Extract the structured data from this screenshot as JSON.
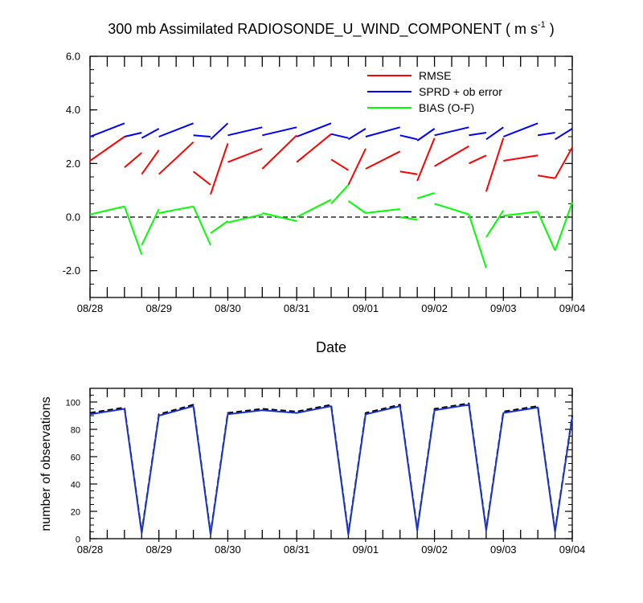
{
  "chart_data": [
    {
      "type": "line",
      "title": "300 mb Assimilated RADIOSONDE_U_WIND_COMPONENT ( m s",
      "title_units_superscript": "-1",
      "title_suffix": " )",
      "xlabel": "Date",
      "ylabel": "",
      "xlim": [
        0,
        7
      ],
      "ylim": [
        -3,
        6
      ],
      "yticks": [
        -2,
        0,
        2,
        4,
        6
      ],
      "ytick_labels": [
        "-2.0",
        "0.0",
        "2.0",
        "4.0",
        "6.0"
      ],
      "xtick_positions": [
        0,
        1,
        2,
        3,
        4,
        5,
        6,
        7
      ],
      "xtick_labels": [
        "08/28",
        "08/29",
        "08/30",
        "08/31",
        "09/01",
        "09/02",
        "09/03",
        "09/04"
      ],
      "reference_line": 0,
      "legend_position": "top-right",
      "series": [
        {
          "name": "RMSE",
          "color": "#ff0000",
          "segments": [
            [
              [
                0.0,
                2.1
              ],
              [
                0.5,
                3.0
              ]
            ],
            [
              [
                0.5,
                1.85
              ],
              [
                0.75,
                2.4
              ]
            ],
            [
              [
                0.75,
                1.6
              ],
              [
                1.0,
                2.5
              ]
            ],
            [
              [
                1.0,
                1.6
              ],
              [
                1.5,
                2.8
              ]
            ],
            [
              [
                1.5,
                1.7
              ],
              [
                1.75,
                1.2
              ]
            ],
            [
              [
                1.75,
                0.85
              ],
              [
                2.0,
                2.75
              ]
            ],
            [
              [
                2.0,
                2.05
              ],
              [
                2.5,
                2.55
              ]
            ],
            [
              [
                2.5,
                1.8
              ],
              [
                3.0,
                3.05
              ]
            ],
            [
              [
                3.0,
                2.05
              ],
              [
                3.5,
                3.1
              ]
            ],
            [
              [
                3.5,
                2.15
              ],
              [
                3.75,
                1.75
              ]
            ],
            [
              [
                3.75,
                1.2
              ],
              [
                4.0,
                2.55
              ]
            ],
            [
              [
                4.0,
                1.8
              ],
              [
                4.5,
                2.45
              ]
            ],
            [
              [
                4.5,
                1.7
              ],
              [
                4.75,
                1.6
              ]
            ],
            [
              [
                4.75,
                1.35
              ],
              [
                5.0,
                2.95
              ]
            ],
            [
              [
                5.0,
                1.9
              ],
              [
                5.5,
                2.65
              ]
            ],
            [
              [
                5.5,
                2.0
              ],
              [
                5.75,
                2.3
              ]
            ],
            [
              [
                5.75,
                0.95
              ],
              [
                6.0,
                2.95
              ]
            ],
            [
              [
                6.0,
                2.1
              ],
              [
                6.5,
                2.3
              ]
            ],
            [
              [
                6.5,
                1.55
              ],
              [
                6.75,
                1.45
              ]
            ],
            [
              [
                6.75,
                1.45
              ],
              [
                7.0,
                2.6
              ]
            ]
          ]
        },
        {
          "name": "SPRD + ob error",
          "color": "#0000ff",
          "segments": [
            [
              [
                0.0,
                3.0
              ],
              [
                0.5,
                3.5
              ]
            ],
            [
              [
                0.5,
                3.0
              ],
              [
                0.75,
                3.15
              ]
            ],
            [
              [
                0.75,
                2.95
              ],
              [
                1.0,
                3.3
              ]
            ],
            [
              [
                1.0,
                3.0
              ],
              [
                1.5,
                3.5
              ]
            ],
            [
              [
                1.5,
                3.05
              ],
              [
                1.75,
                3.0
              ]
            ],
            [
              [
                1.75,
                2.9
              ],
              [
                2.0,
                3.5
              ]
            ],
            [
              [
                2.0,
                3.05
              ],
              [
                2.5,
                3.35
              ]
            ],
            [
              [
                2.5,
                3.05
              ],
              [
                3.0,
                3.35
              ]
            ],
            [
              [
                3.0,
                3.0
              ],
              [
                3.5,
                3.5
              ]
            ],
            [
              [
                3.5,
                3.1
              ],
              [
                3.75,
                2.95
              ]
            ],
            [
              [
                3.75,
                2.9
              ],
              [
                4.0,
                3.3
              ]
            ],
            [
              [
                4.0,
                3.0
              ],
              [
                4.5,
                3.35
              ]
            ],
            [
              [
                4.5,
                3.05
              ],
              [
                4.75,
                2.9
              ]
            ],
            [
              [
                4.75,
                2.85
              ],
              [
                5.0,
                3.3
              ]
            ],
            [
              [
                5.0,
                3.05
              ],
              [
                5.5,
                3.35
              ]
            ],
            [
              [
                5.5,
                3.05
              ],
              [
                5.75,
                3.15
              ]
            ],
            [
              [
                5.75,
                2.9
              ],
              [
                6.0,
                3.35
              ]
            ],
            [
              [
                6.0,
                3.0
              ],
              [
                6.5,
                3.5
              ]
            ],
            [
              [
                6.5,
                3.05
              ],
              [
                6.75,
                3.15
              ]
            ],
            [
              [
                6.75,
                2.9
              ],
              [
                7.0,
                3.3
              ]
            ]
          ]
        },
        {
          "name": "BIAS (O-F)",
          "color": "#00ff00",
          "segments": [
            [
              [
                0.0,
                0.1
              ],
              [
                0.5,
                0.4
              ]
            ],
            [
              [
                0.5,
                0.4
              ],
              [
                0.75,
                -1.4
              ]
            ],
            [
              [
                0.75,
                -1.05
              ],
              [
                1.0,
                0.3
              ]
            ],
            [
              [
                1.0,
                0.15
              ],
              [
                1.5,
                0.4
              ]
            ],
            [
              [
                1.5,
                0.4
              ],
              [
                1.75,
                -1.05
              ]
            ],
            [
              [
                1.75,
                -0.6
              ],
              [
                2.0,
                -0.15
              ]
            ],
            [
              [
                2.0,
                -0.2
              ],
              [
                2.5,
                0.1
              ]
            ],
            [
              [
                2.5,
                0.15
              ],
              [
                3.0,
                -0.15
              ]
            ],
            [
              [
                3.0,
                0.0
              ],
              [
                3.5,
                0.65
              ]
            ],
            [
              [
                3.5,
                0.5
              ],
              [
                3.75,
                1.2
              ]
            ],
            [
              [
                3.75,
                0.6
              ],
              [
                4.0,
                0.15
              ]
            ],
            [
              [
                4.0,
                0.15
              ],
              [
                4.5,
                0.3
              ]
            ],
            [
              [
                4.5,
                0.0
              ],
              [
                4.75,
                -0.1
              ]
            ],
            [
              [
                4.75,
                0.7
              ],
              [
                5.0,
                0.9
              ]
            ],
            [
              [
                5.0,
                0.5
              ],
              [
                5.5,
                0.1
              ]
            ],
            [
              [
                5.5,
                0.1
              ],
              [
                5.75,
                -1.9
              ]
            ],
            [
              [
                5.75,
                -0.75
              ],
              [
                6.0,
                0.25
              ]
            ],
            [
              [
                6.0,
                0.05
              ],
              [
                6.5,
                0.2
              ]
            ],
            [
              [
                6.5,
                0.2
              ],
              [
                6.75,
                -1.25
              ]
            ],
            [
              [
                6.75,
                -1.25
              ],
              [
                7.0,
                0.55
              ]
            ]
          ]
        }
      ]
    },
    {
      "type": "line",
      "title": "",
      "xlabel": "",
      "ylabel": "number of observations",
      "xlim": [
        0,
        7
      ],
      "ylim": [
        0,
        110
      ],
      "yticks": [
        0,
        20,
        40,
        60,
        80,
        100
      ],
      "ytick_labels": [
        "0",
        "20",
        "40",
        "60",
        "80",
        "100"
      ],
      "xtick_positions": [
        0,
        1,
        2,
        3,
        4,
        5,
        6,
        7
      ],
      "xtick_labels": [
        "08/28",
        "08/29",
        "08/30",
        "08/31",
        "09/01",
        "09/02",
        "09/03",
        "09/04"
      ],
      "series": [
        {
          "name": "observations (black dashed)",
          "color": "#000000",
          "style": "dashed",
          "points": [
            [
              0.0,
              92
            ],
            [
              0.5,
              96
            ],
            [
              0.75,
              5
            ],
            [
              1.0,
              91
            ],
            [
              1.5,
              98
            ],
            [
              1.75,
              4
            ],
            [
              2.0,
              92
            ],
            [
              2.5,
              95
            ],
            [
              3.0,
              93
            ],
            [
              3.5,
              98
            ],
            [
              3.75,
              4
            ],
            [
              4.0,
              92
            ],
            [
              4.5,
              98
            ],
            [
              4.75,
              7
            ],
            [
              5.0,
              95
            ],
            [
              5.5,
              99
            ],
            [
              5.75,
              7
            ],
            [
              6.0,
              93
            ],
            [
              6.5,
              97
            ],
            [
              6.75,
              6
            ],
            [
              7.0,
              90
            ]
          ]
        },
        {
          "name": "observations (blue solid)",
          "color": "#1a33cc",
          "style": "solid",
          "points": [
            [
              0.0,
              91
            ],
            [
              0.5,
              95
            ],
            [
              0.75,
              4
            ],
            [
              1.0,
              90
            ],
            [
              1.5,
              97
            ],
            [
              1.75,
              3
            ],
            [
              2.0,
              91
            ],
            [
              2.5,
              94
            ],
            [
              3.0,
              92
            ],
            [
              3.5,
              97
            ],
            [
              3.75,
              3
            ],
            [
              4.0,
              91
            ],
            [
              4.5,
              97
            ],
            [
              4.75,
              6
            ],
            [
              5.0,
              94
            ],
            [
              5.5,
              98
            ],
            [
              5.75,
              6
            ],
            [
              6.0,
              92
            ],
            [
              6.5,
              96
            ],
            [
              6.75,
              5
            ],
            [
              7.0,
              89
            ]
          ]
        }
      ]
    }
  ]
}
